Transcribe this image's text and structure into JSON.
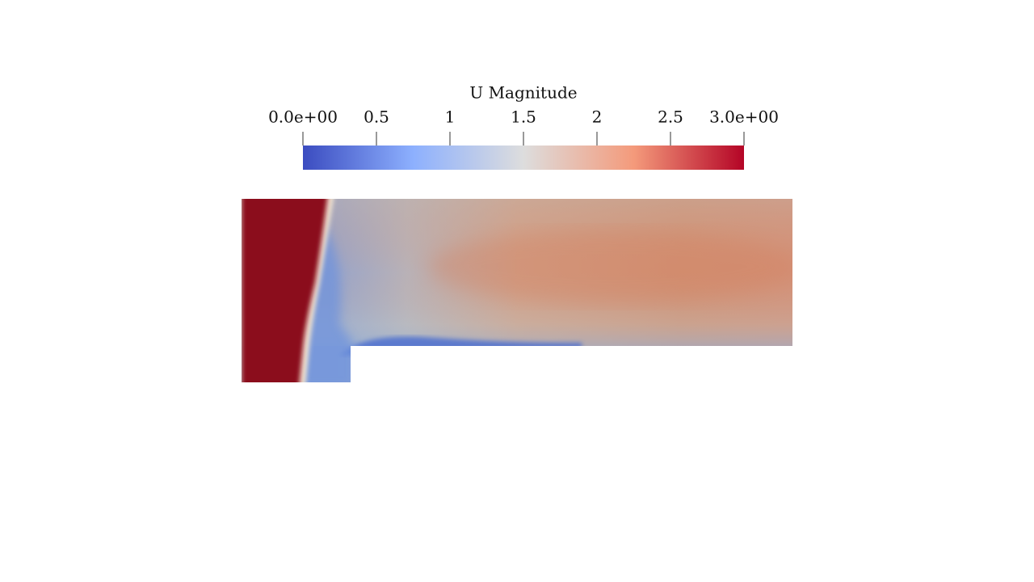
{
  "colorbar": {
    "title": "U Magnitude",
    "range": [
      0,
      3
    ],
    "ticks": [
      {
        "value": 0,
        "label": "0.0e+00"
      },
      0.5,
      1,
      1.5,
      2,
      2.5,
      {
        "value": 3,
        "label": "3.0e+00"
      }
    ]
  }
}
